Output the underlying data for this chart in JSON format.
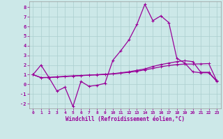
{
  "xlabel": "Windchill (Refroidissement éolien,°C)",
  "background_color": "#cce8e8",
  "grid_color": "#aacece",
  "line_color": "#990099",
  "xlim": [
    -0.5,
    23.5
  ],
  "ylim": [
    -2.5,
    8.6
  ],
  "xticks": [
    0,
    1,
    2,
    3,
    4,
    5,
    6,
    7,
    8,
    9,
    10,
    11,
    12,
    13,
    14,
    15,
    16,
    17,
    18,
    19,
    20,
    21,
    22,
    23
  ],
  "yticks": [
    -2,
    -1,
    0,
    1,
    2,
    3,
    4,
    5,
    6,
    7,
    8
  ],
  "line1_x": [
    0,
    1,
    2,
    3,
    4,
    5,
    6,
    7,
    8,
    9,
    10,
    11,
    12,
    13,
    14,
    15,
    16,
    17,
    18,
    19,
    20,
    21,
    22,
    23
  ],
  "line1_y": [
    1.0,
    2.0,
    0.7,
    -0.7,
    -0.3,
    -2.3,
    0.3,
    -0.2,
    -0.1,
    0.1,
    2.5,
    3.5,
    4.6,
    6.2,
    8.3,
    6.6,
    7.1,
    6.4,
    2.7,
    2.2,
    1.3,
    1.2,
    1.2,
    0.3
  ],
  "line2_x": [
    0,
    1,
    2,
    3,
    4,
    5,
    6,
    7,
    8,
    9,
    10,
    11,
    12,
    13,
    14,
    15,
    16,
    17,
    18,
    19,
    20,
    21,
    22,
    23
  ],
  "line2_y": [
    1.0,
    0.7,
    0.7,
    0.75,
    0.8,
    0.85,
    0.9,
    0.95,
    1.0,
    1.05,
    1.1,
    1.2,
    1.3,
    1.45,
    1.6,
    1.85,
    2.05,
    2.2,
    2.35,
    2.45,
    2.35,
    1.25,
    1.25,
    0.35
  ],
  "line3_x": [
    0,
    1,
    2,
    3,
    4,
    5,
    6,
    7,
    8,
    9,
    10,
    11,
    12,
    13,
    14,
    15,
    16,
    17,
    18,
    19,
    20,
    21,
    22,
    23
  ],
  "line3_y": [
    1.0,
    0.7,
    0.72,
    0.78,
    0.83,
    0.88,
    0.92,
    0.95,
    0.98,
    1.02,
    1.08,
    1.15,
    1.25,
    1.35,
    1.5,
    1.65,
    1.82,
    1.95,
    2.05,
    2.1,
    2.1,
    2.12,
    2.15,
    0.35
  ]
}
